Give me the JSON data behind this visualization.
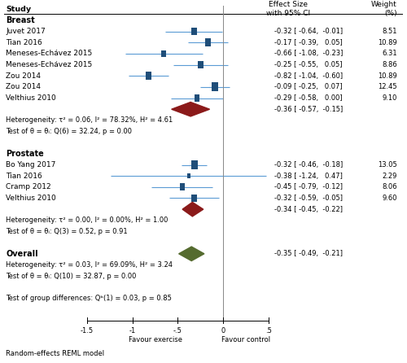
{
  "groups": [
    {
      "name": "Breast",
      "studies": [
        {
          "label": "Juvet 2017",
          "effect": -0.32,
          "ci_lo": -0.64,
          "ci_hi": -0.01,
          "weight": 8.51
        },
        {
          "label": "Tian 2016",
          "effect": -0.17,
          "ci_lo": -0.39,
          "ci_hi": 0.05,
          "weight": 10.89
        },
        {
          "label": "Meneses-Echávez 2015",
          "effect": -0.66,
          "ci_lo": -1.08,
          "ci_hi": -0.23,
          "weight": 6.31
        },
        {
          "label": "Meneses-Echávez 2015",
          "effect": -0.25,
          "ci_lo": -0.55,
          "ci_hi": 0.05,
          "weight": 8.86
        },
        {
          "label": "Zou 2014",
          "effect": -0.82,
          "ci_lo": -1.04,
          "ci_hi": -0.6,
          "weight": 10.89
        },
        {
          "label": "Zou 2014",
          "effect": -0.09,
          "ci_lo": -0.25,
          "ci_hi": 0.07,
          "weight": 12.45
        },
        {
          "label": "Velthius 2010",
          "effect": -0.29,
          "ci_lo": -0.58,
          "ci_hi": 0.0,
          "weight": 9.1
        }
      ],
      "pooled": {
        "effect": -0.36,
        "ci_lo": -0.57,
        "ci_hi": -0.15
      },
      "het_text": "Heterogeneity: τ² = 0.06, I² = 78.32%, H² = 4.61",
      "test_text": "Test of θ = θᵢ: Q(6) = 32.24, p = 0.00"
    },
    {
      "name": "Prostate",
      "studies": [
        {
          "label": "Bo Yang 2017",
          "effect": -0.32,
          "ci_lo": -0.46,
          "ci_hi": -0.18,
          "weight": 13.05
        },
        {
          "label": "Tian 2016",
          "effect": -0.38,
          "ci_lo": -1.24,
          "ci_hi": 0.47,
          "weight": 2.29
        },
        {
          "label": "Cramp 2012",
          "effect": -0.45,
          "ci_lo": -0.79,
          "ci_hi": -0.12,
          "weight": 8.06
        },
        {
          "label": "Velthius 2010",
          "effect": -0.32,
          "ci_lo": -0.59,
          "ci_hi": -0.05,
          "weight": 9.6
        }
      ],
      "pooled": {
        "effect": -0.34,
        "ci_lo": -0.45,
        "ci_hi": -0.22
      },
      "het_text": "Heterogeneity: τ² = 0.00, I² = 0.00%, H² = 1.00",
      "test_text": "Test of θ = θᵢ: Q(3) = 0.52, p = 0.91"
    }
  ],
  "overall": {
    "effect": -0.35,
    "ci_lo": -0.49,
    "ci_hi": -0.21,
    "het_text": "Heterogeneity: τ² = 0.03, I² = 69.09%, H² = 3.24",
    "test_text": "Test of θ = θᵢ: Q(10) = 32.87, p = 0.00",
    "group_diff_text": "Test of group differences: Qᵇ(1) = 0.03, p = 0.85"
  },
  "xlim": [
    -1.6,
    0.55
  ],
  "xticks": [
    -1.5,
    -1.0,
    -0.5,
    0.0,
    0.5
  ],
  "xtick_labels": [
    "-1.5",
    "-1",
    "-.5",
    "0",
    ".5"
  ],
  "favour_left": "Favour exercise",
  "favour_right": "Favour control",
  "header_effect": "Effect Size\nwith 95% CI",
  "header_weight": "Weight\n(%)",
  "box_color": "#1f4e79",
  "pooled_breast_color": "#8b1a1a",
  "pooled_prostate_color": "#8b1a1a",
  "pooled_overall_color": "#556b2f",
  "ci_line_color": "#5b9bd5",
  "footer_text": "Random-effects REML model",
  "effect_texts": [
    "-0.32 [ -0.64,  -0.01]",
    "-0.17 [ -0.39,   0.05]",
    "-0.66 [ -1.08,  -0.23]",
    "-0.25 [ -0.55,   0.05]",
    "-0.82 [ -1.04,  -0.60]",
    "-0.09 [ -0.25,   0.07]",
    "-0.29 [ -0.58,   0.00]",
    "-0.36 [ -0.57,  -0.15]",
    "-0.32 [ -0.46,  -0.18]",
    "-0.38 [ -1.24,   0.47]",
    "-0.45 [ -0.79,  -0.12]",
    "-0.32 [ -0.59,  -0.05]",
    "-0.34 [ -0.45,  -0.22]",
    "-0.35 [ -0.49,  -0.21]"
  ],
  "weight_texts": [
    "8.51",
    "10.89",
    "6.31",
    "8.86",
    "10.89",
    "12.45",
    "9.10",
    "",
    "13.05",
    "2.29",
    "8.06",
    "9.60",
    "",
    ""
  ]
}
